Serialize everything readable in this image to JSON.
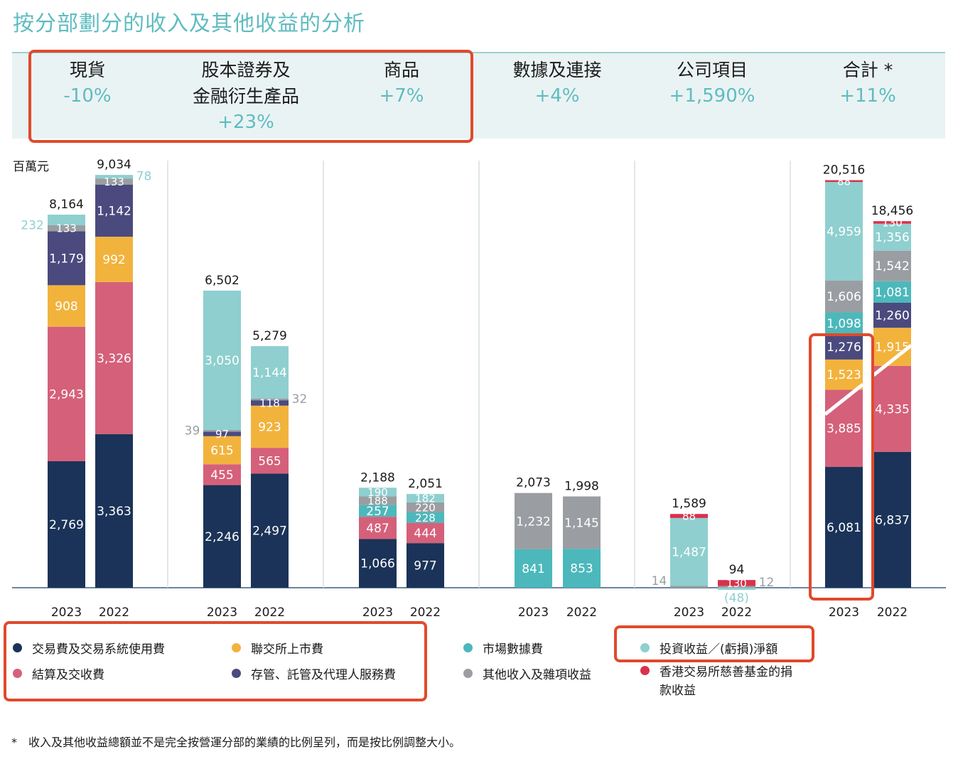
{
  "title": "按分部劃分的收入及其他收益的分析",
  "unit_label": "百萬元",
  "segments": [
    {
      "name_line1": "",
      "name_line2": "現貨",
      "pct": "-10%"
    },
    {
      "name_line1": "股本證券及",
      "name_line2": "金融衍生產品",
      "pct": "+23%"
    },
    {
      "name_line1": "",
      "name_line2": "商品",
      "pct": "+7%"
    },
    {
      "name_line1": "",
      "name_line2": "數據及連接",
      "pct": "+4%"
    },
    {
      "name_line1": "",
      "name_line2": "公司項目",
      "pct": "+1,590%"
    },
    {
      "name_line1": "",
      "name_line2": "合計 *",
      "pct": "+11%"
    }
  ],
  "legend": [
    {
      "key": "trading",
      "label": "交易費及交易系統使用費",
      "color": "#1b3358"
    },
    {
      "key": "listing",
      "label": "聯交所上市費",
      "color": "#f2b33d"
    },
    {
      "key": "market_data",
      "label": "市場數據費",
      "color": "#4cb8bb"
    },
    {
      "key": "investment",
      "label": "投資收益／(虧損)淨額",
      "color": "#8fcfcf"
    },
    {
      "key": "clearing",
      "label": "結算及交收費",
      "color": "#d5607a"
    },
    {
      "key": "depository",
      "label": "存管、託管及代理人服務費",
      "color": "#4b4a7e"
    },
    {
      "key": "other",
      "label": "其他收入及雜項收益",
      "color": "#9a9ea2"
    },
    {
      "key": "charity",
      "label": "香港交易所慈善基金的捐款收益",
      "color": "#d8324a"
    }
  ],
  "footnote": "*　收入及其他收益總額並不是完全按營運分部的業績的比例呈列，而是按比例調整大小。",
  "chart_data": {
    "type": "bar",
    "stacked": true,
    "title": "按分部劃分的收入及其他收益的分析",
    "ylabel": "百萬元",
    "groups": [
      {
        "segment": "現貨",
        "bars": [
          {
            "year": "2023",
            "total": "8,164",
            "stack": [
              {
                "key": "trading",
                "value": 2769,
                "label": "2,769"
              },
              {
                "key": "clearing",
                "value": 2943,
                "label": "2,943"
              },
              {
                "key": "listing",
                "value": 908,
                "label": "908"
              },
              {
                "key": "depository",
                "value": 1179,
                "label": "1,179"
              },
              {
                "key": "other",
                "value": 133,
                "label": "133"
              },
              {
                "key": "investment",
                "value": 232,
                "label": "232"
              }
            ]
          },
          {
            "year": "2022",
            "total": "9,034",
            "stack": [
              {
                "key": "trading",
                "value": 3363,
                "label": "3,363"
              },
              {
                "key": "clearing",
                "value": 3326,
                "label": "3,326"
              },
              {
                "key": "listing",
                "value": 992,
                "label": "992"
              },
              {
                "key": "depository",
                "value": 1142,
                "label": "1,142"
              },
              {
                "key": "other",
                "value": 133,
                "label": "133"
              },
              {
                "key": "investment",
                "value": 78,
                "label": "78"
              }
            ]
          }
        ]
      },
      {
        "segment": "股本證券及金融衍生產品",
        "bars": [
          {
            "year": "2023",
            "total": "6,502",
            "stack": [
              {
                "key": "trading",
                "value": 2246,
                "label": "2,246"
              },
              {
                "key": "clearing",
                "value": 455,
                "label": "455"
              },
              {
                "key": "listing",
                "value": 615,
                "label": "615"
              },
              {
                "key": "depository",
                "value": 97,
                "label": "97"
              },
              {
                "key": "other",
                "value": 39,
                "label": "39"
              },
              {
                "key": "investment",
                "value": 3050,
                "label": "3,050"
              }
            ]
          },
          {
            "year": "2022",
            "total": "5,279",
            "stack": [
              {
                "key": "trading",
                "value": 2497,
                "label": "2,497"
              },
              {
                "key": "clearing",
                "value": 565,
                "label": "565"
              },
              {
                "key": "listing",
                "value": 923,
                "label": "923"
              },
              {
                "key": "depository",
                "value": 118,
                "label": "118"
              },
              {
                "key": "other",
                "value": 32,
                "label": "32"
              },
              {
                "key": "investment",
                "value": 1144,
                "label": "1,144"
              }
            ]
          }
        ]
      },
      {
        "segment": "商品",
        "bars": [
          {
            "year": "2023",
            "total": "2,188",
            "stack": [
              {
                "key": "trading",
                "value": 1066,
                "label": "1,066"
              },
              {
                "key": "clearing",
                "value": 487,
                "label": "487"
              },
              {
                "key": "market_data",
                "value": 257,
                "label": "257"
              },
              {
                "key": "other",
                "value": 188,
                "label": "188"
              },
              {
                "key": "investment",
                "value": 190,
                "label": "190"
              }
            ]
          },
          {
            "year": "2022",
            "total": "2,051",
            "stack": [
              {
                "key": "trading",
                "value": 977,
                "label": "977"
              },
              {
                "key": "clearing",
                "value": 444,
                "label": "444"
              },
              {
                "key": "market_data",
                "value": 228,
                "label": "228"
              },
              {
                "key": "other",
                "value": 220,
                "label": "220"
              },
              {
                "key": "investment",
                "value": 182,
                "label": "182"
              }
            ]
          }
        ]
      },
      {
        "segment": "數據及連接",
        "bars": [
          {
            "year": "2023",
            "total": "2,073",
            "stack": [
              {
                "key": "market_data",
                "value": 841,
                "label": "841"
              },
              {
                "key": "other",
                "value": 1232,
                "label": "1,232"
              }
            ]
          },
          {
            "year": "2022",
            "total": "1,998",
            "stack": [
              {
                "key": "market_data",
                "value": 853,
                "label": "853"
              },
              {
                "key": "other",
                "value": 1145,
                "label": "1,145"
              }
            ]
          }
        ]
      },
      {
        "segment": "公司項目",
        "bars": [
          {
            "year": "2023",
            "total": "1,589",
            "stack": [
              {
                "key": "other",
                "value": 14,
                "label": "14"
              },
              {
                "key": "investment",
                "value": 1487,
                "label": "1,487"
              },
              {
                "key": "charity",
                "value": 88,
                "label": "88"
              }
            ]
          },
          {
            "year": "2022",
            "total": "94",
            "stack": [
              {
                "key": "investment",
                "value": -48,
                "label": "(48)"
              },
              {
                "key": "other",
                "value": 12,
                "label": "12"
              },
              {
                "key": "charity",
                "value": 130,
                "label": "130"
              }
            ]
          }
        ]
      },
      {
        "segment": "合計 *",
        "bars": [
          {
            "year": "2023",
            "total": "20,516",
            "stack": [
              {
                "key": "trading",
                "value": 6081,
                "label": "6,081"
              },
              {
                "key": "clearing",
                "value": 3885,
                "label": "3,885"
              },
              {
                "key": "listing",
                "value": 1523,
                "label": "1,523"
              },
              {
                "key": "depository",
                "value": 1276,
                "label": "1,276"
              },
              {
                "key": "market_data",
                "value": 1098,
                "label": "1,098"
              },
              {
                "key": "other",
                "value": 1606,
                "label": "1,606"
              },
              {
                "key": "investment",
                "value": 4959,
                "label": "4,959"
              },
              {
                "key": "charity",
                "value": 88,
                "label": "88"
              }
            ]
          },
          {
            "year": "2022",
            "total": "18,456",
            "stack": [
              {
                "key": "trading",
                "value": 6837,
                "label": "6,837"
              },
              {
                "key": "clearing",
                "value": 4335,
                "label": "4,335"
              },
              {
                "key": "listing",
                "value": 1915,
                "label": "1,915"
              },
              {
                "key": "depository",
                "value": 1260,
                "label": "1,260"
              },
              {
                "key": "market_data",
                "value": 1081,
                "label": "1,081"
              },
              {
                "key": "other",
                "value": 1542,
                "label": "1,542"
              },
              {
                "key": "investment",
                "value": 1356,
                "label": "1,356"
              },
              {
                "key": "charity",
                "value": 130,
                "label": "130"
              }
            ]
          }
        ]
      }
    ]
  }
}
